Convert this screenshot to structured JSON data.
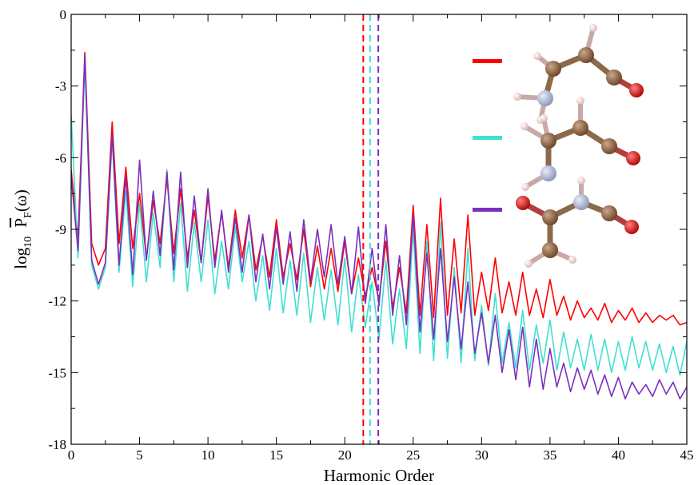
{
  "chart_data": {
    "type": "line",
    "title": "",
    "xlabel": "Harmonic Order",
    "ylabel_parts": {
      "base": "log",
      "sub1": "10",
      "main": "P",
      "sub2": "F",
      "arg": "(ω)"
    },
    "xlim": [
      0,
      45
    ],
    "ylim": [
      -18,
      0
    ],
    "x_ticks": [
      0,
      5,
      10,
      15,
      20,
      25,
      30,
      35,
      40,
      45
    ],
    "y_ticks": [
      0,
      -3,
      -6,
      -9,
      -12,
      -15,
      -18
    ],
    "x_tick_labels": [
      "0",
      "5",
      "10",
      "15",
      "20",
      "25",
      "30",
      "35",
      "40",
      "45"
    ],
    "y_tick_labels": [
      "0",
      "-3",
      "-6",
      "-9",
      "-12",
      "-15",
      "-18"
    ],
    "grid": false,
    "legend_placement": "top-right",
    "series": [
      {
        "color": "#ff0000",
        "cutoff": 21.35,
        "x": [
          0,
          0.5,
          1,
          1.5,
          2,
          2.5,
          3,
          3.5,
          4,
          4.5,
          5,
          5.5,
          6,
          6.5,
          7,
          7.5,
          8,
          8.5,
          9,
          9.5,
          10,
          10.5,
          11,
          11.5,
          12,
          12.5,
          13,
          13.5,
          14,
          14.5,
          15,
          15.5,
          16,
          16.5,
          17,
          17.5,
          18,
          18.5,
          19,
          19.5,
          20,
          20.5,
          21,
          21.5,
          22,
          22.5,
          23,
          23.5,
          24,
          24.5,
          25,
          25.5,
          26,
          26.5,
          27,
          27.5,
          28,
          28.5,
          29,
          29.5,
          30,
          30.5,
          31,
          31.5,
          32,
          32.5,
          33,
          33.5,
          34,
          34.5,
          35,
          35.5,
          36,
          36.5,
          37,
          37.5,
          38,
          38.5,
          39,
          39.5,
          40,
          40.5,
          41,
          41.5,
          42,
          42.5,
          43,
          43.5,
          44,
          44.5,
          45
        ],
        "y": [
          -6.5,
          -9.4,
          -1.6,
          -9.6,
          -10.5,
          -9.8,
          -4.5,
          -9.6,
          -6.4,
          -9.8,
          -7.5,
          -10.2,
          -7.8,
          -9.6,
          -6.9,
          -10.0,
          -7.3,
          -10.2,
          -8.2,
          -10.4,
          -7.6,
          -10.3,
          -8.3,
          -10.6,
          -8.2,
          -10.2,
          -8.4,
          -10.7,
          -9.3,
          -11.0,
          -8.6,
          -11.0,
          -9.6,
          -11.1,
          -9.0,
          -11.4,
          -9.7,
          -11.5,
          -9.8,
          -11.6,
          -9.5,
          -11.7,
          -10.2,
          -11.8,
          -10.6,
          -12.0,
          -9.5,
          -12.3,
          -10.6,
          -12.5,
          -8.0,
          -12.6,
          -8.8,
          -12.7,
          -7.7,
          -12.6,
          -9.4,
          -12.5,
          -8.4,
          -12.6,
          -10.8,
          -12.4,
          -10.2,
          -12.5,
          -11.2,
          -12.6,
          -10.8,
          -12.6,
          -11.5,
          -12.7,
          -11.1,
          -12.6,
          -11.8,
          -12.8,
          -12.0,
          -12.7,
          -12.3,
          -12.8,
          -12.1,
          -12.9,
          -12.4,
          -12.8,
          -12.3,
          -12.9,
          -12.5,
          -12.9,
          -12.6,
          -12.8,
          -12.6,
          -13.0,
          -12.9
        ]
      },
      {
        "color": "#40e0d0",
        "cutoff": 21.85,
        "x": [
          0,
          0.5,
          1,
          1.5,
          2,
          2.5,
          3,
          3.5,
          4,
          4.5,
          5,
          5.5,
          6,
          6.5,
          7,
          7.5,
          8,
          8.5,
          9,
          9.5,
          10,
          10.5,
          11,
          11.5,
          12,
          12.5,
          13,
          13.5,
          14,
          14.5,
          15,
          15.5,
          16,
          16.5,
          17,
          17.5,
          18,
          18.5,
          19,
          19.5,
          20,
          20.5,
          21,
          21.5,
          22,
          22.5,
          23,
          23.5,
          24,
          24.5,
          25,
          25.5,
          26,
          26.5,
          27,
          27.5,
          28,
          28.5,
          29,
          29.5,
          30,
          30.5,
          31,
          31.5,
          32,
          32.5,
          33,
          33.5,
          34,
          34.5,
          35,
          35.5,
          36,
          36.5,
          37,
          37.5,
          38,
          38.5,
          39,
          39.5,
          40,
          40.5,
          41,
          41.5,
          42,
          42.5,
          43,
          43.5,
          44,
          44.5,
          45
        ],
        "y": [
          -4.2,
          -10.2,
          -2.0,
          -10.5,
          -11.5,
          -10.6,
          -5.2,
          -10.8,
          -7.4,
          -11.4,
          -7.9,
          -11.2,
          -8.3,
          -10.6,
          -6.5,
          -11.2,
          -7.9,
          -11.6,
          -8.7,
          -11.2,
          -8.6,
          -11.7,
          -9.5,
          -11.5,
          -8.9,
          -11.2,
          -9.5,
          -12.0,
          -10.1,
          -12.4,
          -9.8,
          -12.5,
          -10.3,
          -12.6,
          -10.0,
          -12.9,
          -10.6,
          -12.8,
          -10.7,
          -13.0,
          -10.2,
          -13.3,
          -10.9,
          -13.1,
          -11.2,
          -13.6,
          -10.3,
          -13.8,
          -11.5,
          -14.0,
          -9.0,
          -14.2,
          -9.5,
          -14.5,
          -8.7,
          -14.4,
          -10.6,
          -14.6,
          -9.8,
          -14.5,
          -12.2,
          -14.7,
          -11.7,
          -14.6,
          -12.9,
          -14.8,
          -12.4,
          -14.9,
          -13.0,
          -14.6,
          -12.8,
          -14.9,
          -13.3,
          -14.8,
          -13.6,
          -14.9,
          -13.4,
          -14.9,
          -13.6,
          -15.0,
          -13.7,
          -14.9,
          -13.5,
          -14.8,
          -13.7,
          -14.9,
          -13.8,
          -15.0,
          -13.9,
          -15.1,
          -13.7
        ]
      },
      {
        "color": "#7b2fbe",
        "cutoff": 22.45,
        "x": [
          0,
          0.5,
          1,
          1.5,
          2,
          2.5,
          3,
          3.5,
          4,
          4.5,
          5,
          5.5,
          6,
          6.5,
          7,
          7.5,
          8,
          8.5,
          9,
          9.5,
          10,
          10.5,
          11,
          11.5,
          12,
          12.5,
          13,
          13.5,
          14,
          14.5,
          15,
          15.5,
          16,
          16.5,
          17,
          17.5,
          18,
          18.5,
          19,
          19.5,
          20,
          20.5,
          21,
          21.5,
          22,
          22.5,
          23,
          23.5,
          24,
          24.5,
          25,
          25.5,
          26,
          26.5,
          27,
          27.5,
          28,
          28.5,
          29,
          29.5,
          30,
          30.5,
          31,
          31.5,
          32,
          32.5,
          33,
          33.5,
          34,
          34.5,
          35,
          35.5,
          36,
          36.5,
          37,
          37.5,
          38,
          38.5,
          39,
          39.5,
          40,
          40.5,
          41,
          41.5,
          42,
          42.5,
          43,
          43.5,
          44,
          44.5,
          45
        ],
        "y": [
          -6.8,
          -9.9,
          -1.7,
          -10.3,
          -11.3,
          -10.4,
          -5.0,
          -10.5,
          -6.8,
          -10.9,
          -6.1,
          -10.3,
          -7.4,
          -10.1,
          -6.6,
          -10.7,
          -6.6,
          -10.6,
          -7.6,
          -10.4,
          -7.3,
          -10.6,
          -8.2,
          -10.8,
          -8.5,
          -10.8,
          -8.4,
          -11.2,
          -9.2,
          -11.5,
          -8.9,
          -11.3,
          -9.1,
          -11.6,
          -8.6,
          -11.2,
          -9.0,
          -11.0,
          -8.8,
          -11.3,
          -9.3,
          -11.7,
          -8.9,
          -12.1,
          -9.8,
          -12.2,
          -8.8,
          -12.6,
          -10.1,
          -13.0,
          -8.4,
          -13.3,
          -10.0,
          -13.6,
          -9.8,
          -13.7,
          -11.0,
          -14.0,
          -11.2,
          -14.2,
          -12.5,
          -14.6,
          -12.6,
          -15.0,
          -13.2,
          -15.3,
          -13.1,
          -15.6,
          -13.6,
          -15.7,
          -14.0,
          -15.6,
          -14.6,
          -15.8,
          -14.8,
          -15.7,
          -14.9,
          -15.9,
          -15.1,
          -16.0,
          -15.2,
          -16.1,
          -15.4,
          -15.9,
          -15.5,
          -16.0,
          -15.3,
          -15.9,
          -15.4,
          -16.1,
          -15.6
        ]
      }
    ]
  }
}
